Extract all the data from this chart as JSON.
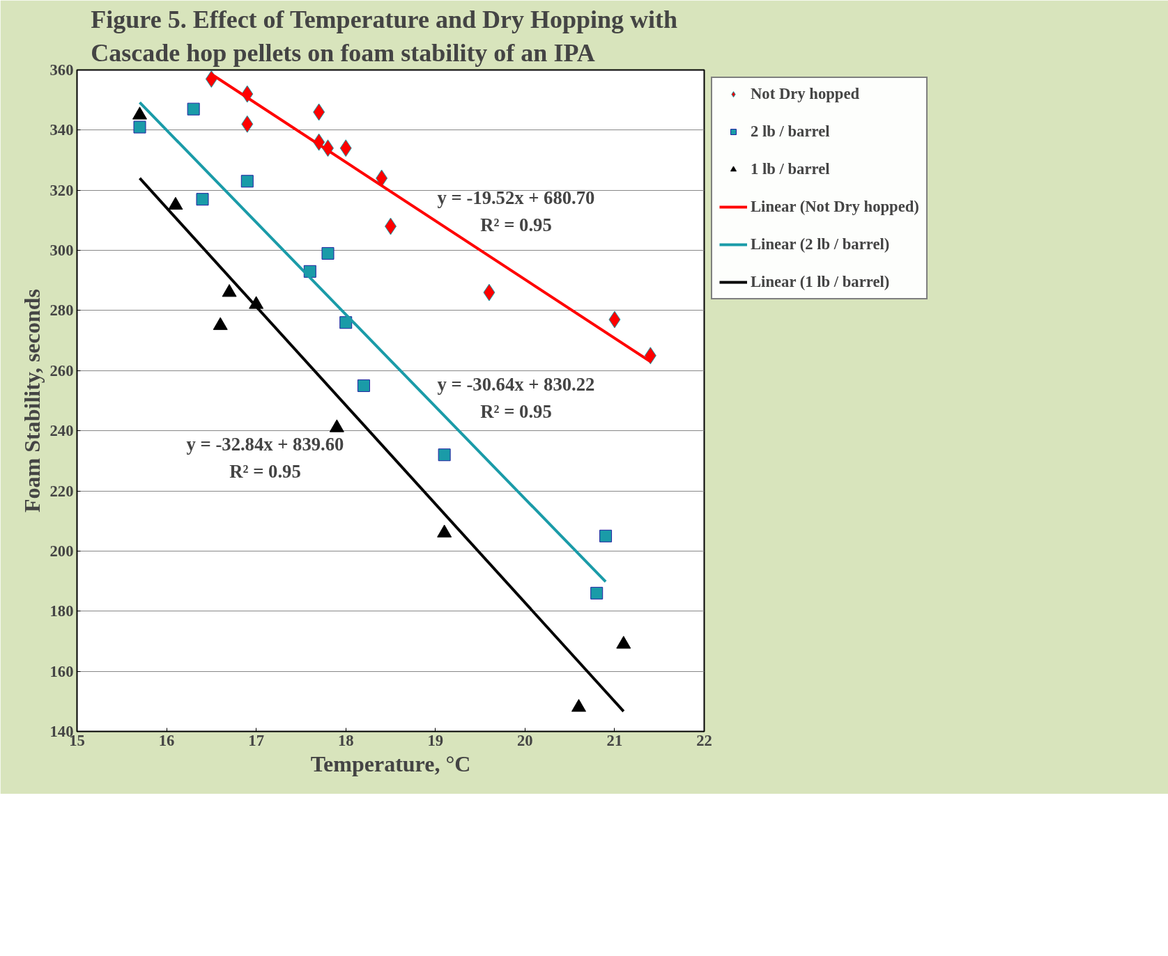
{
  "chart_data": {
    "type": "scatter",
    "title": "Figure 5.  Effect of Temperature  and Dry Hopping with\nCascade hop pellets on foam stability of an IPA",
    "xlabel": "Temperature, °C",
    "ylabel": "Foam Stability, seconds",
    "xlim": [
      15,
      22
    ],
    "xticks": [
      15,
      16,
      17,
      18,
      19,
      20,
      21,
      22
    ],
    "ylim": [
      140,
      360
    ],
    "yticks": [
      140,
      160,
      180,
      200,
      220,
      240,
      260,
      280,
      300,
      320,
      340,
      360
    ],
    "grid": "y",
    "legend": "right",
    "series": [
      {
        "name": "Not Dry hopped",
        "marker": "diamond",
        "color": "#ff0000",
        "x": [
          16.5,
          16.9,
          16.9,
          17.7,
          17.7,
          17.8,
          18.0,
          18.4,
          18.5,
          19.6,
          21.0,
          21.4
        ],
        "values": [
          357,
          352,
          342,
          346,
          336,
          334,
          334,
          324,
          308,
          286,
          277,
          265
        ]
      },
      {
        "name": "2 lb / barrel",
        "marker": "square",
        "color": "#1a9ba8",
        "x": [
          15.7,
          16.3,
          16.4,
          16.9,
          17.6,
          17.8,
          18.0,
          18.2,
          19.1,
          20.8,
          20.9
        ],
        "values": [
          341,
          347,
          317,
          323,
          293,
          299,
          276,
          255,
          232,
          186,
          205
        ]
      },
      {
        "name": "1 lb / barrel",
        "marker": "triangle",
        "color": "#000000",
        "x": [
          15.7,
          16.1,
          16.6,
          16.7,
          17.0,
          17.9,
          19.1,
          20.6,
          21.1
        ],
        "values": [
          345,
          315,
          275,
          286,
          282,
          241,
          206,
          148,
          169
        ]
      },
      {
        "name": "Linear (Not Dry hopped)",
        "type": "line",
        "color": "#ff0000",
        "x": [
          16.5,
          21.4
        ],
        "values": [
          358.6,
          263.0
        ]
      },
      {
        "name": "Linear (2 lb / barrel)",
        "type": "line",
        "color": "#1a9ba8",
        "x": [
          15.7,
          20.9
        ],
        "values": [
          349.2,
          189.8
        ]
      },
      {
        "name": "Linear (1 lb / barrel)",
        "type": "line",
        "color": "#000000",
        "x": [
          15.7,
          21.1
        ],
        "values": [
          324.0,
          146.7
        ]
      }
    ],
    "annotations": [
      "y = -19.52x + 680.70",
      "R² = 0.95",
      "y = -30.64x + 830.22",
      "R² = 0.95",
      "y = -32.84x + 839.60",
      "R² = 0.95"
    ]
  }
}
